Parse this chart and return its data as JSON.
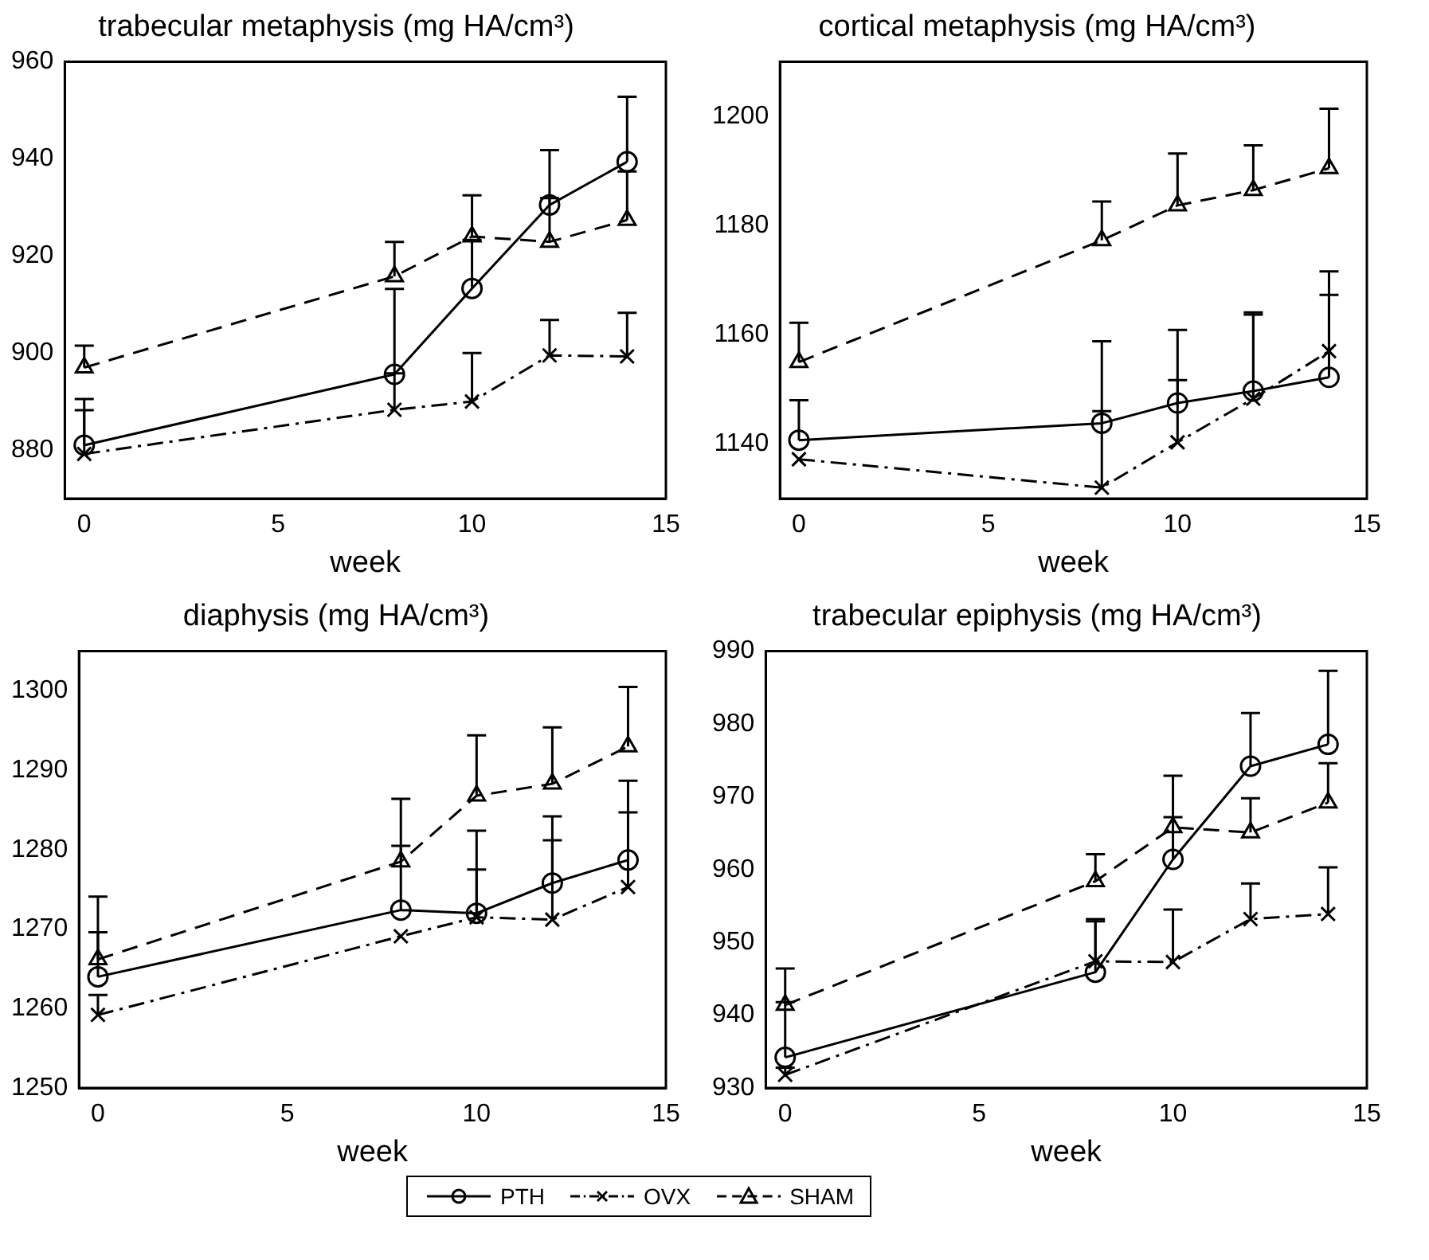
{
  "chart_data": [
    {
      "type": "line",
      "title": "trabecular metaphysis (mg HA/cm³)",
      "xlabel": "week",
      "x": [
        0,
        8,
        10,
        12,
        14
      ],
      "xlim": [
        -0.5,
        15
      ],
      "xticks": [
        0,
        5,
        10,
        15
      ],
      "ylim": [
        870,
        960
      ],
      "yticks": [
        880,
        900,
        920,
        940,
        960
      ],
      "grid": false,
      "series": [
        {
          "color": "#000000",
          "marker": "circle",
          "line_style": "solid",
          "values": [
            881,
            895.6,
            913.3,
            930.5,
            939.4
          ],
          "errors": [
            [
              881,
              890.5
            ],
            [
              895.6,
              913.2
            ],
            [
              913.3,
              923.3
            ],
            [
              930.5,
              941.8
            ],
            [
              939.4,
              952.8
            ]
          ]
        },
        {
          "color": "#000000",
          "marker": "cross",
          "line_style": "dashdot",
          "values": [
            879.2,
            888.3,
            890,
            899.5,
            899.3
          ],
          "errors": [
            [
              879.2,
              888.2
            ],
            [
              888.3,
              895.8
            ],
            [
              890,
              900
            ],
            [
              899.5,
              906.8
            ],
            [
              899.3,
              908.3
            ]
          ]
        },
        {
          "color": "#000000",
          "marker": "triangle",
          "line_style": "dashed",
          "values": [
            897,
            915.8,
            924,
            922.9,
            927.4
          ],
          "errors": [
            [
              897,
              901.5
            ],
            [
              915.8,
              922.9
            ],
            [
              924,
              932.5
            ],
            [
              922.9,
              931.9
            ],
            [
              927.4,
              937.4
            ]
          ]
        }
      ]
    },
    {
      "type": "line",
      "title": "cortical metaphysis (mg HA/cm³)",
      "xlabel": "week",
      "x": [
        0,
        8,
        10,
        12,
        14
      ],
      "xlim": [
        -0.5,
        15
      ],
      "xticks": [
        0,
        5,
        10,
        15
      ],
      "ylim": [
        1130,
        1210
      ],
      "yticks": [
        1140,
        1160,
        1180,
        1200
      ],
      "grid": false,
      "series": [
        {
          "color": "#000000",
          "marker": "circle",
          "line_style": "solid",
          "values": [
            1140.7,
            1143.8,
            1147.5,
            1149.7,
            1152.2
          ],
          "errors": [
            [
              1140.7,
              1148
            ],
            [
              1143.8,
              1158.8
            ],
            [
              1147.5,
              1160.9
            ],
            [
              1149.7,
              1164.1
            ],
            [
              1152.2,
              1167.3
            ]
          ]
        },
        {
          "color": "#000000",
          "marker": "cross",
          "line_style": "dashdot",
          "values": [
            1137.2,
            1132,
            1140.3,
            1148.3,
            1157
          ],
          "errors": [
            null,
            [
              1132,
              1146
            ],
            [
              1140.3,
              1151.7
            ],
            [
              1148.3,
              1163.7
            ],
            [
              1157,
              1171.6
            ]
          ]
        },
        {
          "color": "#000000",
          "marker": "triangle",
          "line_style": "dashed",
          "values": [
            1155,
            1177.3,
            1183.7,
            1186.5,
            1190.5
          ],
          "errors": [
            [
              1155,
              1162.2
            ],
            [
              1177.3,
              1184.4
            ],
            [
              1183.7,
              1193.2
            ],
            [
              1186.5,
              1194.7
            ],
            [
              1190.5,
              1201.4
            ]
          ]
        }
      ]
    },
    {
      "type": "line",
      "title": "diaphysis (mg HA/cm³)",
      "xlabel": "week",
      "x": [
        0,
        8,
        10,
        12,
        14
      ],
      "xlim": [
        -0.5,
        15
      ],
      "xticks": [
        0,
        5,
        10,
        15
      ],
      "ylim": [
        1250,
        1305
      ],
      "yticks": [
        1250,
        1260,
        1270,
        1280,
        1290,
        1300
      ],
      "grid": false,
      "series": [
        {
          "color": "#000000",
          "marker": "circle",
          "line_style": "solid",
          "values": [
            1264,
            1272.4,
            1272,
            1275.8,
            1278.7
          ],
          "errors": [
            [
              1264,
              1269.6
            ],
            [
              1272.4,
              1280.5
            ],
            [
              1272,
              1282.4
            ],
            [
              1275.8,
              1284.2
            ],
            [
              1278.7,
              1284.7
            ]
          ]
        },
        {
          "color": "#000000",
          "marker": "cross",
          "line_style": "dashdot",
          "values": [
            1259.2,
            1269.1,
            1271.5,
            1271.2,
            1275.3
          ],
          "errors": [
            [
              1259.2,
              1261.7
            ],
            null,
            [
              1271.5,
              1277.5
            ],
            [
              1271.2,
              1281.2
            ],
            [
              1275.3,
              1288.7
            ]
          ]
        },
        {
          "color": "#000000",
          "marker": "triangle",
          "line_style": "dashed",
          "values": [
            1266.2,
            1278.5,
            1286.8,
            1288.3,
            1293
          ],
          "errors": [
            [
              1266.2,
              1274.1
            ],
            [
              1278.5,
              1286.4
            ],
            [
              1286.8,
              1294.4
            ],
            [
              1288.3,
              1295.4
            ],
            [
              1293,
              1300.5
            ]
          ]
        }
      ]
    },
    {
      "type": "line",
      "title": "trabecular epiphysis (mg HA/cm³)",
      "xlabel": "week",
      "x": [
        0,
        8,
        10,
        12,
        14
      ],
      "xlim": [
        -0.5,
        15
      ],
      "xticks": [
        0,
        5,
        10,
        15
      ],
      "ylim": [
        930,
        990
      ],
      "yticks": [
        930,
        940,
        950,
        960,
        970,
        980,
        990
      ],
      "grid": false,
      "legend": "bottom",
      "series": [
        {
          "name": "PTH",
          "color": "#000000",
          "marker": "circle",
          "line_style": "solid",
          "values": [
            934.2,
            945.9,
            961.4,
            974.2,
            977.2
          ],
          "errors": [
            [
              934.2,
              941.8
            ],
            [
              945.9,
              952.9
            ],
            [
              961.4,
              967.2
            ],
            [
              974.2,
              981.5
            ],
            [
              977.2,
              987.3
            ]
          ]
        },
        {
          "name": "OVX",
          "color": "#000000",
          "marker": "cross",
          "line_style": "dashdot",
          "values": [
            931.8,
            947.4,
            947.3,
            953.2,
            953.9
          ],
          "errors": [
            [
              931.8,
              932.8
            ],
            [
              947.4,
              953.2
            ],
            [
              947.3,
              954.5
            ],
            [
              953.2,
              958.1
            ],
            [
              953.9,
              960.3
            ]
          ]
        },
        {
          "name": "SHAM",
          "color": "#000000",
          "marker": "triangle",
          "line_style": "dashed",
          "values": [
            941.4,
            958.4,
            965.8,
            965.1,
            969.2
          ],
          "errors": [
            [
              941.4,
              946.4
            ],
            [
              958.4,
              962.1
            ],
            [
              965.8,
              972.9
            ],
            [
              965.1,
              969.8
            ],
            [
              969.2,
              974.6
            ]
          ]
        }
      ]
    }
  ]
}
